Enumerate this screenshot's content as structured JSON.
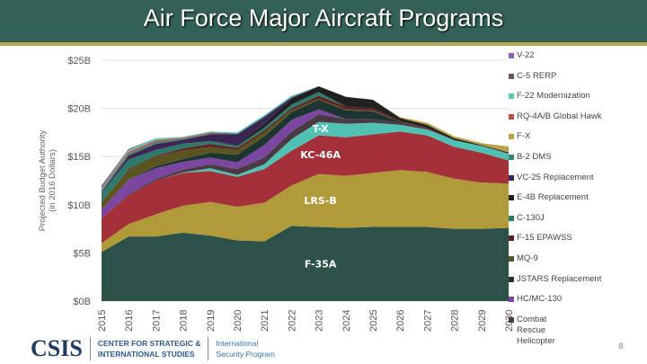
{
  "slide": {
    "title": "Air Force Major Aircraft Programs",
    "page_number": "8",
    "footer": {
      "logo": "CSIS",
      "org_line1": "CENTER FOR STRATEGIC &",
      "org_line2": "INTERNATIONAL STUDIES",
      "program_line1": "International",
      "program_line2": "Security Program"
    },
    "colors": {
      "header": "#336157",
      "accent": "#b5a654"
    }
  },
  "chart_data": {
    "type": "area",
    "stacked": true,
    "ylabel": "Projected Budget Authority (in 2016 Dollars)",
    "ylabel_lines": [
      "Projected Budget Authority",
      "(in 2016 Dollars)"
    ],
    "ylim": [
      0,
      25
    ],
    "yticks": [
      "$0B",
      "$5B",
      "$10B",
      "$15B",
      "$20B",
      "$25B"
    ],
    "grid": true,
    "legend_position": "right",
    "x": [
      "2015",
      "2016",
      "2017",
      "2018",
      "2019",
      "2020",
      "2021",
      "2022",
      "2023",
      "2024",
      "2025",
      "2026",
      "2027",
      "2028",
      "2029",
      "2030"
    ],
    "series": [
      {
        "name": "F-35A",
        "color": "#2b5148",
        "label": "F-35A",
        "values": [
          5.1,
          6.7,
          6.7,
          7.1,
          6.8,
          6.3,
          6.2,
          7.8,
          7.7,
          7.6,
          7.7,
          7.7,
          7.7,
          7.5,
          7.5,
          7.6
        ]
      },
      {
        "name": "LRS-B",
        "color": "#b09a3a",
        "label": "LRS-B",
        "values": [
          0.9,
          1.3,
          2.3,
          2.8,
          3.5,
          3.5,
          4.0,
          4.2,
          5.5,
          5.4,
          5.6,
          5.9,
          5.7,
          5.2,
          4.8,
          4.6
        ]
      },
      {
        "name": "KC-46A",
        "color": "#a4313a",
        "label": "KC-46A",
        "values": [
          2.6,
          3.0,
          3.5,
          3.4,
          3.2,
          3.1,
          3.5,
          3.6,
          4.0,
          4.0,
          4.0,
          4.0,
          3.8,
          3.3,
          3.1,
          2.4
        ]
      },
      {
        "name": "T-X",
        "color": "#4fc2b3",
        "label": "T-X",
        "values": [
          0,
          0,
          0,
          0.05,
          0.3,
          0.2,
          0.5,
          1.2,
          1.4,
          1.4,
          1.2,
          0.7,
          0.6,
          0.7,
          0.7,
          0.7
        ]
      },
      {
        "name": "Combat Rescue Helicopter",
        "color": "#4a3a44",
        "values": [
          0,
          0.1,
          0.2,
          0.3,
          0.4,
          0.6,
          0.7,
          0.8,
          0.8,
          0.5,
          0.4,
          0.2,
          0.1,
          0,
          0,
          0
        ]
      },
      {
        "name": "HC/MC-130",
        "color": "#7b46a0",
        "values": [
          0.9,
          1.5,
          1.1,
          0.8,
          0.7,
          0.7,
          1.3,
          1.2,
          0.5,
          0,
          0,
          0,
          0,
          0,
          0,
          0
        ]
      },
      {
        "name": "JSTARS Replacement",
        "color": "#1c3530",
        "values": [
          0,
          0,
          0.2,
          0.3,
          0.5,
          0.8,
          0.9,
          0.8,
          1.0,
          0.9,
          0.8,
          0.1,
          0,
          0,
          0,
          0
        ]
      },
      {
        "name": "MQ-9",
        "color": "#5a5520",
        "values": [
          0.8,
          1.0,
          1.0,
          0.9,
          0.6,
          0.5,
          0.4,
          0.2,
          0.1,
          0.1,
          0.1,
          0,
          0,
          0,
          0,
          0
        ]
      },
      {
        "name": "F-15 EPAWSS",
        "color": "#5e1f22",
        "values": [
          0,
          0.1,
          0.1,
          0.2,
          0.3,
          0.2,
          0.2,
          0.2,
          0.3,
          0.3,
          0.2,
          0.1,
          0.1,
          0,
          0,
          0.1
        ]
      },
      {
        "name": "C-130J",
        "color": "#2e7a6a",
        "values": [
          0.9,
          1.0,
          0.6,
          0.5,
          0.3,
          0.2,
          0.3,
          0.4,
          0.4,
          0,
          0,
          0,
          0,
          0,
          0,
          0
        ]
      },
      {
        "name": "E-4B Replacement",
        "color": "#222022",
        "values": [
          0,
          0,
          0,
          0,
          0,
          0.1,
          0.4,
          0.6,
          0.6,
          1.0,
          0.9,
          0.3,
          0.3,
          0.2,
          0.1,
          0.05
        ]
      },
      {
        "name": "VC-25 Replacement",
        "color": "#3c2455",
        "values": [
          0.1,
          0.4,
          0.6,
          0.4,
          0.7,
          1.1,
          0.7,
          0.1,
          0,
          0,
          0,
          0,
          0,
          0,
          0,
          0
        ]
      },
      {
        "name": "B-2 DMS",
        "color": "#3d8577",
        "values": [
          0.2,
          0.2,
          0.2,
          0.1,
          0.1,
          0.1,
          0.1,
          0.1,
          0,
          0,
          0,
          0,
          0,
          0,
          0,
          0
        ]
      },
      {
        "name": "F-X",
        "color": "#b8a348",
        "values": [
          0,
          0,
          0,
          0,
          0,
          0,
          0,
          0,
          0,
          0,
          0,
          0.1,
          0.2,
          0.2,
          0.2,
          0.6
        ]
      },
      {
        "name": "RQ-4A/B Global Hawk",
        "color": "#c0504d",
        "values": [
          0.1,
          0.2,
          0.2,
          0.1,
          0.1,
          0,
          0,
          0,
          0,
          0,
          0,
          0,
          0,
          0,
          0,
          0
        ]
      },
      {
        "name": "F-22 Modernization",
        "color": "#5ec5b7",
        "values": [
          0.1,
          0.2,
          0.2,
          0.1,
          0.1,
          0.1,
          0.1,
          0.1,
          0,
          0,
          0,
          0,
          0,
          0,
          0,
          0
        ]
      },
      {
        "name": "C-5 RERP",
        "color": "#6a5858",
        "values": [
          0.2,
          0.1,
          0,
          0,
          0,
          0,
          0,
          0,
          0,
          0,
          0,
          0,
          0,
          0,
          0,
          0
        ]
      },
      {
        "name": "V-22",
        "color": "#8e5fb0",
        "values": [
          0.1,
          0,
          0,
          0,
          0,
          0,
          0,
          0,
          0,
          0,
          0,
          0,
          0,
          0,
          0,
          0
        ]
      }
    ],
    "legend": [
      "V-22",
      "C-5 RERP",
      "F-22 Modernization",
      "RQ-4A/B Global Hawk",
      "F-X",
      "B-2 DMS",
      "VC-25 Replacement",
      "E-4B Replacement",
      "C-130J",
      "F-15 EPAWSS",
      "MQ-9",
      "JSTARS Replacement",
      "HC/MC-130",
      "Combat Rescue Helicopter"
    ]
  }
}
